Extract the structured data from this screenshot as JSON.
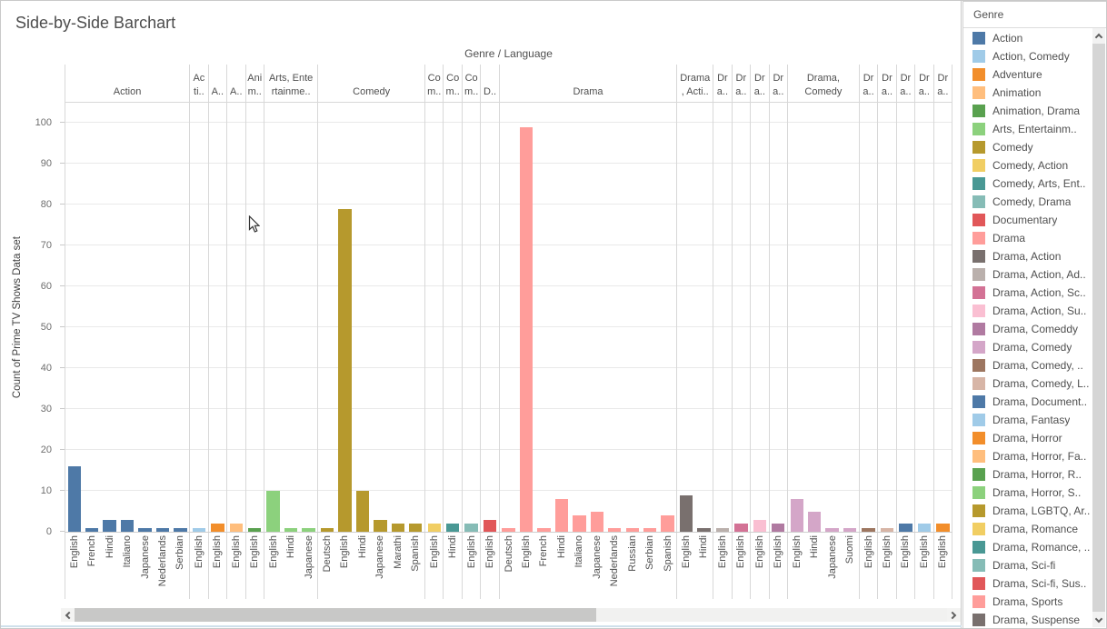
{
  "title": "Side-by-Side Barchart",
  "axis": {
    "x_title": "Genre / Language",
    "y_title": "Count of Prime TV Shows Data set",
    "y_ticks": [
      0,
      10,
      20,
      30,
      40,
      50,
      60,
      70,
      80,
      90,
      100
    ]
  },
  "legend": {
    "title": "Genre",
    "items": [
      {
        "label": "Action",
        "color": "#4e79a7"
      },
      {
        "label": "Action, Comedy",
        "color": "#a0cbe8"
      },
      {
        "label": "Adventure",
        "color": "#f28e2b"
      },
      {
        "label": "Animation",
        "color": "#ffbe7d"
      },
      {
        "label": "Animation, Drama",
        "color": "#59a14f"
      },
      {
        "label": "Arts, Entertainm..",
        "color": "#8cd17d"
      },
      {
        "label": "Comedy",
        "color": "#b6992d"
      },
      {
        "label": "Comedy, Action",
        "color": "#f1ce63"
      },
      {
        "label": "Comedy, Arts, Ent..",
        "color": "#499894"
      },
      {
        "label": "Comedy, Drama",
        "color": "#86bcb6"
      },
      {
        "label": "Documentary",
        "color": "#e15759"
      },
      {
        "label": "Drama",
        "color": "#ff9d9a"
      },
      {
        "label": "Drama, Action",
        "color": "#79706e"
      },
      {
        "label": "Drama, Action, Ad..",
        "color": "#bab0ac"
      },
      {
        "label": "Drama, Action, Sc..",
        "color": "#d37295"
      },
      {
        "label": "Drama, Action, Su..",
        "color": "#fabfd2"
      },
      {
        "label": "Drama, Comeddy",
        "color": "#b07aa1"
      },
      {
        "label": "Drama, Comedy",
        "color": "#d4a6c8"
      },
      {
        "label": "Drama, Comedy, ..",
        "color": "#9d7660"
      },
      {
        "label": "Drama, Comedy, L..",
        "color": "#d7b5a6"
      },
      {
        "label": "Drama, Document..",
        "color": "#4e79a7"
      },
      {
        "label": "Drama, Fantasy",
        "color": "#a0cbe8"
      },
      {
        "label": "Drama, Horror",
        "color": "#f28e2b"
      },
      {
        "label": "Drama, Horror, Fa..",
        "color": "#ffbe7d"
      },
      {
        "label": "Drama, Horror, R..",
        "color": "#59a14f"
      },
      {
        "label": "Drama, Horror, S..",
        "color": "#8cd17d"
      },
      {
        "label": "Drama, LGBTQ, Ar..",
        "color": "#b6992d"
      },
      {
        "label": "Drama, Romance",
        "color": "#f1ce63"
      },
      {
        "label": "Drama, Romance, ..",
        "color": "#499894"
      },
      {
        "label": "Drama, Sci-fi",
        "color": "#86bcb6"
      },
      {
        "label": "Drama, Sci-fi, Sus..",
        "color": "#e15759"
      },
      {
        "label": "Drama, Sports",
        "color": "#ff9d9a"
      },
      {
        "label": "Drama, Suspense",
        "color": "#79706e"
      }
    ]
  },
  "chart_data": {
    "type": "bar",
    "title": "Side-by-Side Barchart",
    "xlabel": "Genre / Language",
    "ylabel": "Count of Prime TV Shows Data set",
    "ylim": [
      0,
      100
    ],
    "grid": true,
    "legend_position": "right",
    "groups": [
      {
        "genre": "Action",
        "header": "Action",
        "color": "#4e79a7",
        "bars": [
          {
            "language": "English",
            "value": 16
          },
          {
            "language": "French",
            "value": 1
          },
          {
            "language": "Hindi",
            "value": 3
          },
          {
            "language": "Italiano",
            "value": 3
          },
          {
            "language": "Japanese",
            "value": 1
          },
          {
            "language": "Nederlands",
            "value": 1
          },
          {
            "language": "Serbian",
            "value": 1
          }
        ]
      },
      {
        "genre": "Action, Comedy",
        "header": "Ac\nti..",
        "color": "#a0cbe8",
        "bars": [
          {
            "language": "English",
            "value": 1
          }
        ]
      },
      {
        "genre": "Adventure",
        "header": "A..",
        "color": "#f28e2b",
        "bars": [
          {
            "language": "English",
            "value": 2
          }
        ]
      },
      {
        "genre": "Animation",
        "header": "A..",
        "color": "#ffbe7d",
        "bars": [
          {
            "language": "English",
            "value": 2
          }
        ]
      },
      {
        "genre": "Animation, Drama",
        "header": "Ani\nm..",
        "color": "#59a14f",
        "bars": [
          {
            "language": "English",
            "value": 1
          }
        ]
      },
      {
        "genre": "Arts, Entertainm..",
        "header": "Arts, Ente\nrtainme..",
        "color": "#8cd17d",
        "bars": [
          {
            "language": "English",
            "value": 10
          },
          {
            "language": "Hindi",
            "value": 1
          },
          {
            "language": "Japanese",
            "value": 1
          }
        ]
      },
      {
        "genre": "Comedy",
        "header": "Comedy",
        "color": "#b6992d",
        "bars": [
          {
            "language": "Deutsch",
            "value": 1
          },
          {
            "language": "English",
            "value": 79
          },
          {
            "language": "Hindi",
            "value": 10
          },
          {
            "language": "Japanese",
            "value": 3
          },
          {
            "language": "Marathi",
            "value": 2
          },
          {
            "language": "Spanish",
            "value": 2
          }
        ]
      },
      {
        "genre": "Comedy, Action",
        "header": "Co\nm..",
        "color": "#f1ce63",
        "bars": [
          {
            "language": "English",
            "value": 2
          }
        ]
      },
      {
        "genre": "Comedy, Arts, Ent..",
        "header": "Co\nm..",
        "color": "#499894",
        "bars": [
          {
            "language": "Hindi",
            "value": 2
          }
        ]
      },
      {
        "genre": "Comedy, Drama",
        "header": "Co\nm..",
        "color": "#86bcb6",
        "bars": [
          {
            "language": "English",
            "value": 2
          }
        ]
      },
      {
        "genre": "Documentary",
        "header": "D..",
        "color": "#e15759",
        "bars": [
          {
            "language": "English",
            "value": 3
          }
        ]
      },
      {
        "genre": "Drama",
        "header": "Drama",
        "color": "#ff9d9a",
        "bars": [
          {
            "language": "Deutsch",
            "value": 1
          },
          {
            "language": "English",
            "value": 99
          },
          {
            "language": "French",
            "value": 1
          },
          {
            "language": "Hindi",
            "value": 8
          },
          {
            "language": "Italiano",
            "value": 4
          },
          {
            "language": "Japanese",
            "value": 5
          },
          {
            "language": "Nederlands",
            "value": 1
          },
          {
            "language": "Russian",
            "value": 1
          },
          {
            "language": "Serbian",
            "value": 1
          },
          {
            "language": "Spanish",
            "value": 4
          }
        ]
      },
      {
        "genre": "Drama, Action",
        "header": "Drama\n, Acti..",
        "color": "#79706e",
        "bars": [
          {
            "language": "English",
            "value": 9
          },
          {
            "language": "Hindi",
            "value": 1
          }
        ]
      },
      {
        "genre": "Drama, Action, Ad..",
        "header": "Dr\na..",
        "color": "#bab0ac",
        "bars": [
          {
            "language": "English",
            "value": 1
          }
        ]
      },
      {
        "genre": "Drama, Action, Sc..",
        "header": "Dr\na..",
        "color": "#d37295",
        "bars": [
          {
            "language": "English",
            "value": 2
          }
        ]
      },
      {
        "genre": "Drama, Action, Su..",
        "header": "Dr\na..",
        "color": "#fabfd2",
        "bars": [
          {
            "language": "English",
            "value": 3
          }
        ]
      },
      {
        "genre": "Drama, Comeddy",
        "header": "Dr\na..",
        "color": "#b07aa1",
        "bars": [
          {
            "language": "English",
            "value": 2
          }
        ]
      },
      {
        "genre": "Drama, Comedy",
        "header": "Drama,\nComedy",
        "color": "#d4a6c8",
        "bars": [
          {
            "language": "English",
            "value": 8
          },
          {
            "language": "Hindi",
            "value": 5
          },
          {
            "language": "Japanese",
            "value": 1
          },
          {
            "language": "Suomi",
            "value": 1
          }
        ]
      },
      {
        "genre": "Drama, Comedy, ..",
        "header": "Dr\na..",
        "color": "#9d7660",
        "bars": [
          {
            "language": "English",
            "value": 1
          }
        ]
      },
      {
        "genre": "Drama, Comedy, L..",
        "header": "Dr\na..",
        "color": "#d7b5a6",
        "bars": [
          {
            "language": "English",
            "value": 1
          }
        ]
      },
      {
        "genre": "Drama, Document..",
        "header": "Dr\na..",
        "color": "#4e79a7",
        "bars": [
          {
            "language": "English",
            "value": 2
          }
        ]
      },
      {
        "genre": "Drama, Fantasy",
        "header": "Dr\na..",
        "color": "#a0cbe8",
        "bars": [
          {
            "language": "English",
            "value": 2
          }
        ]
      },
      {
        "genre": "Drama, Horror",
        "header": "Dr\na..",
        "color": "#f28e2b",
        "bars": [
          {
            "language": "English",
            "value": 2
          }
        ]
      }
    ]
  }
}
